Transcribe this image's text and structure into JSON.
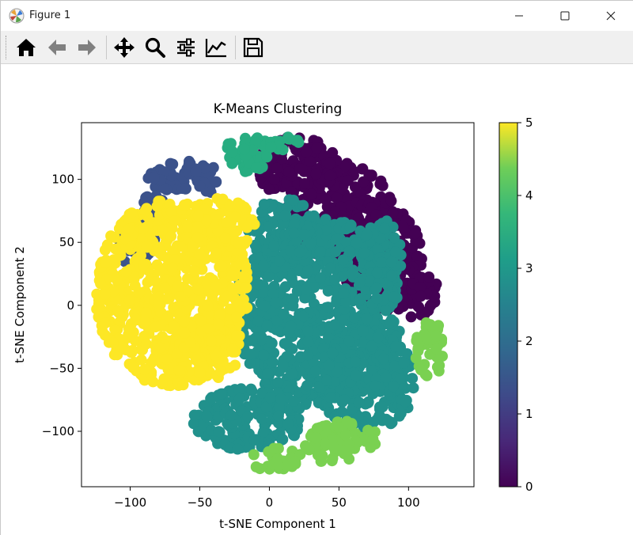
{
  "window": {
    "title": "Figure 1",
    "controls": [
      "minimize-icon",
      "maximize-icon",
      "close-icon"
    ]
  },
  "toolbar": {
    "buttons": [
      {
        "name": "home-button",
        "icon": "home-icon"
      },
      {
        "name": "back-button",
        "icon": "arrow-left-icon"
      },
      {
        "name": "forward-button",
        "icon": "arrow-right-icon"
      },
      {
        "name": "pan-button",
        "icon": "move-icon"
      },
      {
        "name": "zoom-button",
        "icon": "magnifier-icon"
      },
      {
        "name": "subplots-button",
        "icon": "sliders-icon"
      },
      {
        "name": "axes-edit-button",
        "icon": "line-chart-icon"
      },
      {
        "name": "save-button",
        "icon": "floppy-disk-icon"
      }
    ]
  },
  "chart_data": {
    "type": "scatter",
    "title": "K-Means Clustering",
    "xlabel": "t-SNE Component 1",
    "ylabel": "t-SNE Component 2",
    "xlim": [
      -135,
      147
    ],
    "ylim": [
      -144,
      145
    ],
    "xticks": [
      -100,
      -50,
      0,
      50,
      100
    ],
    "yticks": [
      -100,
      -50,
      0,
      50,
      100
    ],
    "xtick_labels": [
      "−100",
      "−50",
      "0",
      "50",
      "100"
    ],
    "ytick_labels": [
      "−100",
      "−50",
      "0",
      "50",
      "100"
    ],
    "colorbar": {
      "colormap": "viridis",
      "range": [
        0,
        5
      ],
      "ticks": [
        0,
        1,
        2,
        3,
        4,
        5
      ],
      "tick_labels": [
        "0",
        "1",
        "2",
        "3",
        "4",
        "5"
      ]
    },
    "clusters": [
      {
        "label": 0,
        "color": "#440154",
        "regions": [
          [
            50,
            75,
            38,
            40
          ],
          [
            80,
            40,
            30,
            45
          ],
          [
            20,
            110,
            30,
            25
          ],
          [
            100,
            10,
            22,
            20
          ]
        ]
      },
      {
        "label": 1,
        "color": "#3b528b",
        "regions": [
          [
            -70,
            105,
            22,
            15
          ],
          [
            -45,
            100,
            12,
            12
          ],
          [
            -95,
            48,
            15,
            18
          ],
          [
            -85,
            80,
            10,
            10
          ]
        ]
      },
      {
        "label": 2,
        "color": "#21918c",
        "regions": [
          [
            35,
            -5,
            60,
            75
          ],
          [
            -15,
            -90,
            40,
            25
          ],
          [
            70,
            -60,
            35,
            40
          ],
          [
            10,
            60,
            25,
            25
          ],
          [
            80,
            40,
            15,
            30
          ]
        ]
      },
      {
        "label": 3,
        "color": "#27ad81",
        "regions": [
          [
            -15,
            120,
            18,
            15
          ],
          [
            12,
            128,
            12,
            8
          ]
        ]
      },
      {
        "label": 4,
        "color": "#7ad151",
        "regions": [
          [
            55,
            -110,
            30,
            18
          ],
          [
            5,
            -122,
            20,
            10
          ],
          [
            115,
            -35,
            10,
            25
          ]
        ]
      },
      {
        "label": 5,
        "color": "#fde725",
        "regions": [
          [
            -70,
            10,
            55,
            75
          ],
          [
            -35,
            60,
            25,
            25
          ],
          [
            -50,
            -35,
            30,
            25
          ]
        ]
      }
    ]
  }
}
